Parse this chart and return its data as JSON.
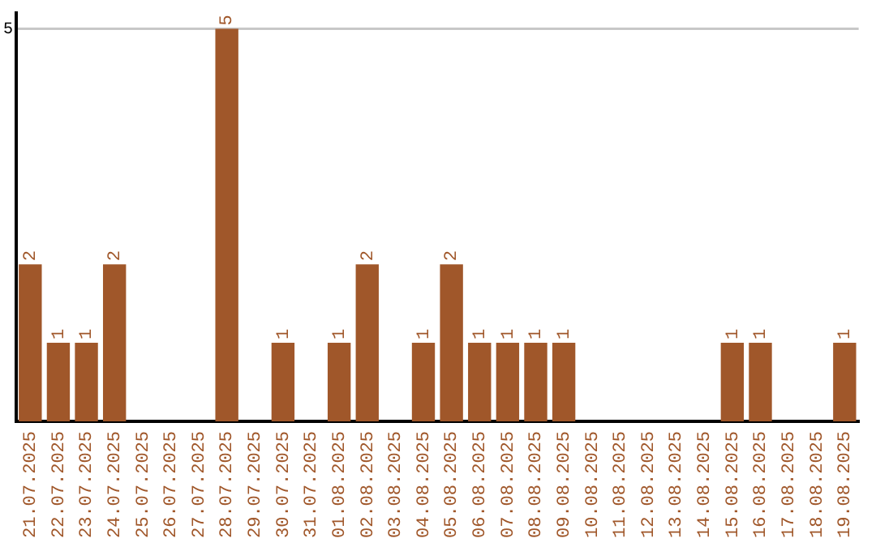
{
  "chart_data": {
    "type": "bar",
    "categories": [
      "21.07.2025",
      "22.07.2025",
      "23.07.2025",
      "24.07.2025",
      "25.07.2025",
      "26.07.2025",
      "27.07.2025",
      "28.07.2025",
      "29.07.2025",
      "30.07.2025",
      "31.07.2025",
      "01.08.2025",
      "02.08.2025",
      "03.08.2025",
      "04.08.2025",
      "05.08.2025",
      "06.08.2025",
      "07.08.2025",
      "08.08.2025",
      "09.08.2025",
      "10.08.2025",
      "11.08.2025",
      "12.08.2025",
      "13.08.2025",
      "14.08.2025",
      "15.08.2025",
      "16.08.2025",
      "17.08.2025",
      "18.08.2025",
      "19.08.2025"
    ],
    "values": [
      2,
      1,
      1,
      2,
      0,
      0,
      0,
      5,
      0,
      1,
      0,
      1,
      2,
      0,
      1,
      2,
      1,
      1,
      1,
      1,
      0,
      0,
      0,
      0,
      0,
      1,
      1,
      0,
      0,
      1
    ],
    "value_labels": [
      "2",
      "1",
      "1",
      "2",
      null,
      null,
      null,
      "5",
      null,
      "1",
      null,
      "1",
      "2",
      null,
      "1",
      "2",
      "1",
      "1",
      "1",
      "1",
      null,
      null,
      null,
      null,
      null,
      "1",
      "1",
      null,
      null,
      "1"
    ],
    "color": "#a0572a",
    "ylim": [
      0,
      5.2
    ],
    "yticks": [
      5
    ],
    "grid": "y",
    "legend": false
  }
}
